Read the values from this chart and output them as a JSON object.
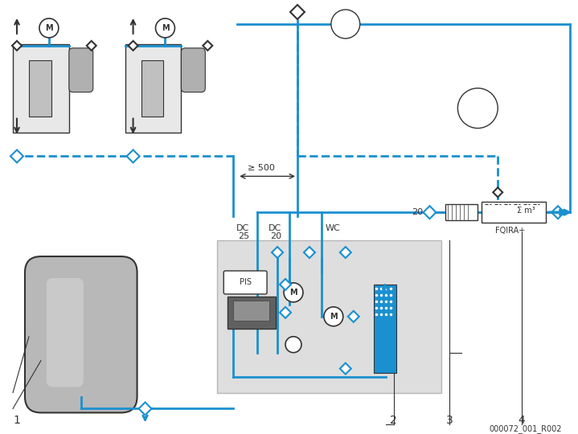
{
  "background_color": "#ffffff",
  "line_color_blue": "#1a90d0",
  "line_color_dark": "#555555",
  "line_color_black": "#333333",
  "dashed_blue": "#1a90d0",
  "gray_box_color": "#d8d8d8",
  "label_1": "1",
  "label_2": "2",
  "label_3": "3",
  "label_4": "4",
  "label_dc25": "DC",
  "label_dc20": "DC",
  "label_wc": "WC",
  "label_25": "25",
  "label_20": "20",
  "label_20b": "20",
  "label_500": "≥ 500",
  "label_pis": "PIS",
  "label_fqira": "FQIRA+",
  "label_sigma": "Σ m³",
  "ref_code": "000072_001_R002",
  "title_fontsize": 9,
  "annotation_fontsize": 8
}
